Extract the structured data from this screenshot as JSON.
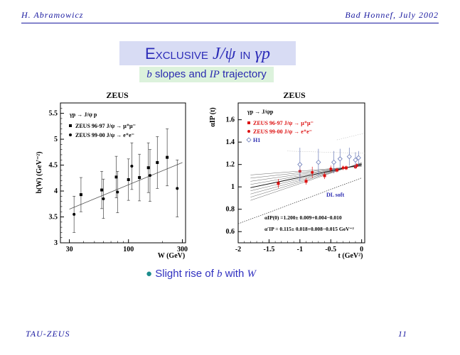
{
  "header": {
    "left": "H. Abramowicz",
    "right": "Bad Honnef, July 2002"
  },
  "title": {
    "word": "Exclusive",
    "psi_particle": "J/ψ",
    "connector": "in",
    "process": "γp"
  },
  "subtitle": {
    "b": "b",
    "rest1": " slopes and ",
    "P": "IP",
    "rest2": " trajectory"
  },
  "bullet": {
    "pre": "Slight rise of ",
    "b": "b",
    "mid": " with ",
    "W": "W"
  },
  "footer": {
    "left": "TAU-ZEUS",
    "right": "11"
  },
  "chart_data": [
    {
      "type": "scatter",
      "title": "ZEUS",
      "xlabel": "W (GeV)",
      "ylabel": "b(W) (GeV⁻²)",
      "xscale": "log",
      "xlim": [
        25,
        320
      ],
      "ylim": [
        3,
        5.7
      ],
      "xticks": [
        30,
        100,
        300
      ],
      "yticks": [
        3,
        3.5,
        4,
        4.5,
        5,
        5.5
      ],
      "legend_heading": "γp → J/ψ p",
      "legend": [
        "ZEUS 96-97  J/ψ → μ⁺μ⁻",
        "ZEUS 99-00  J/ψ → e⁺e⁻"
      ],
      "fit_line": [
        [
          30,
          3.65
        ],
        [
          300,
          4.55
        ]
      ],
      "series": [
        {
          "name": "ZEUS 96-97  J/ψ → μ⁺μ⁻",
          "marker": "square",
          "points": [
            {
              "x": 38,
              "y": 3.93,
              "err": 0.33
            },
            {
              "x": 58,
              "y": 4.02,
              "err": 0.36
            },
            {
              "x": 78,
              "y": 4.27,
              "err": 0.4
            },
            {
              "x": 100,
              "y": 4.22,
              "err": 0.4
            },
            {
              "x": 125,
              "y": 4.26,
              "err": 0.45
            },
            {
              "x": 150,
              "y": 4.45,
              "err": 0.48
            },
            {
              "x": 180,
              "y": 4.55,
              "err": 0.5
            },
            {
              "x": 220,
              "y": 4.65,
              "err": 0.55
            }
          ]
        },
        {
          "name": "ZEUS 99-00  J/ψ → e⁺e⁻",
          "marker": "dot",
          "points": [
            {
              "x": 33,
              "y": 3.55,
              "err": 0.35
            },
            {
              "x": 60,
              "y": 3.85,
              "err": 0.38
            },
            {
              "x": 80,
              "y": 3.98,
              "err": 0.4
            },
            {
              "x": 107,
              "y": 4.48,
              "err": 0.45
            },
            {
              "x": 155,
              "y": 4.3,
              "err": 0.5
            },
            {
              "x": 270,
              "y": 4.05,
              "err": 0.55
            }
          ]
        }
      ]
    },
    {
      "type": "scatter",
      "title": "ZEUS",
      "xlabel": "t (GeV²)",
      "ylabel": "αIP (t)",
      "xlim": [
        -2,
        0.05
      ],
      "ylim": [
        0.5,
        1.75
      ],
      "xticks": [
        -2,
        -1.5,
        -1,
        -0.5,
        0
      ],
      "yticks": [
        0.6,
        0.8,
        1,
        1.2,
        1.4,
        1.6
      ],
      "legend_heading": "γp → J/ψp",
      "legend": [
        "ZEUS 96-97 J/ψ → μ⁺μ⁻",
        "ZEUS 99-00 J/ψ → e⁺e⁻",
        "H1"
      ],
      "annotation_dl": "DL soft",
      "formula_1": "αIP(0) =1.200± 0.009+0.004−0.010",
      "formula_2": "α′IP = 0.115± 0.018+0.008−0.015 GeV⁻²",
      "dl_soft_line": [
        [
          -2,
          0.67
        ],
        [
          0,
          1.08
        ]
      ],
      "fit_band": {
        "intercept": 1.2,
        "slope": 0.115,
        "t_range": [
          -1.8,
          0
        ]
      },
      "series": [
        {
          "name": "ZEUS 96-97 J/ψ → μ⁺μ⁻",
          "marker": "square",
          "color": "#dd1111",
          "points": [
            {
              "x": -1.35,
              "y": 1.03,
              "err": 0.04
            },
            {
              "x": -0.9,
              "y": 1.05,
              "err": 0.03
            },
            {
              "x": -0.6,
              "y": 1.1,
              "err": 0.03
            },
            {
              "x": -0.4,
              "y": 1.15,
              "err": 0.02
            },
            {
              "x": -0.25,
              "y": 1.17,
              "err": 0.02
            },
            {
              "x": -0.1,
              "y": 1.18,
              "err": 0.02
            }
          ]
        },
        {
          "name": "ZEUS 99-00 J/ψ → e⁺e⁻",
          "marker": "dot",
          "color": "#dd1111",
          "points": [
            {
              "x": -1.0,
              "y": 1.14,
              "err": 0.06
            },
            {
              "x": -0.8,
              "y": 1.13,
              "err": 0.05
            },
            {
              "x": -0.5,
              "y": 1.16,
              "err": 0.03
            },
            {
              "x": -0.3,
              "y": 1.17,
              "err": 0.02
            },
            {
              "x": -0.08,
              "y": 1.19,
              "err": 0.02
            }
          ]
        },
        {
          "name": "H1",
          "marker": "open-diamond",
          "color": "#6a7ab8",
          "points": [
            {
              "x": -1.0,
              "y": 1.2,
              "err": 0.15
            },
            {
              "x": -0.7,
              "y": 1.22,
              "err": 0.12
            },
            {
              "x": -0.45,
              "y": 1.22,
              "err": 0.1
            },
            {
              "x": -0.35,
              "y": 1.25,
              "err": 0.09
            },
            {
              "x": -0.2,
              "y": 1.27,
              "err": 0.08
            },
            {
              "x": -0.1,
              "y": 1.24,
              "err": 0.07
            },
            {
              "x": -0.05,
              "y": 1.26,
              "err": 0.06
            }
          ]
        }
      ]
    }
  ]
}
